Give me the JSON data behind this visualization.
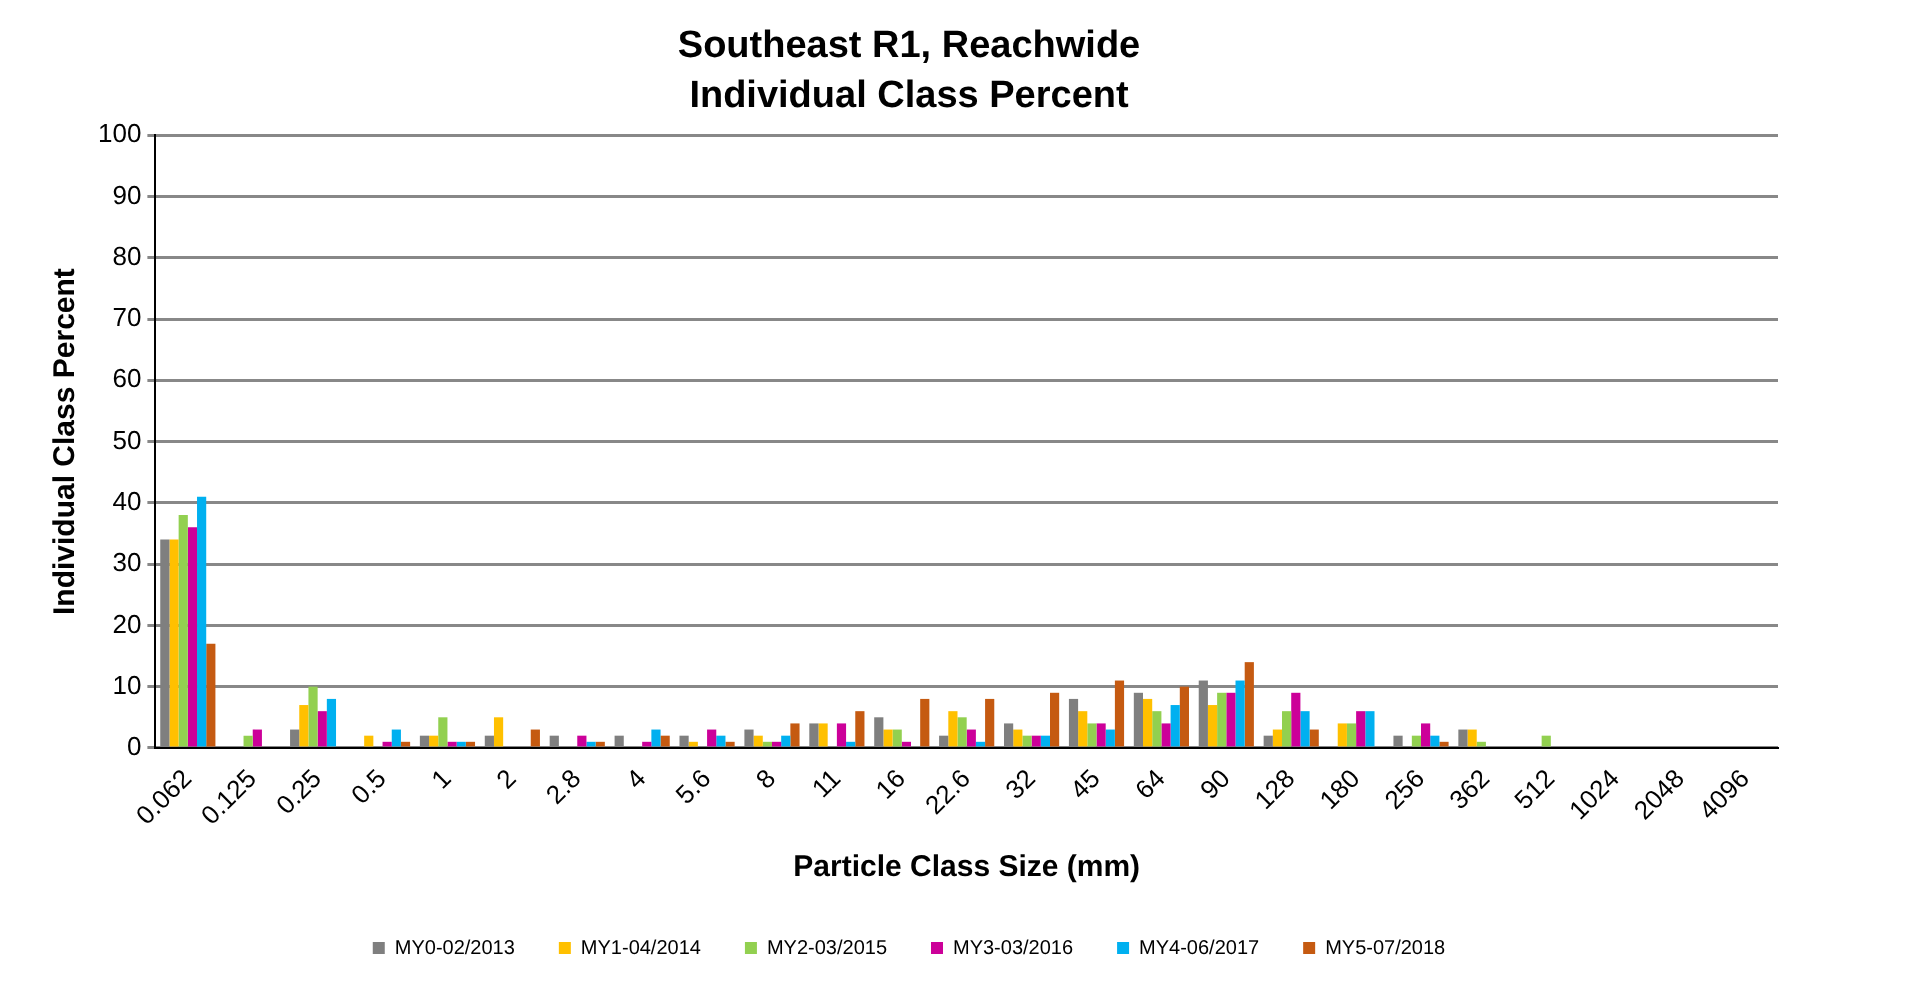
{
  "chart_data": {
    "type": "bar",
    "title": "Southeast R1, Reachwide",
    "subtitle": "Individual Class Percent",
    "xlabel": "Particle Class Size (mm)",
    "ylabel": "Individual Class Percent",
    "categories": [
      "0.062",
      "0.125",
      "0.25",
      "0.5",
      "1",
      "2",
      "2.8",
      "4",
      "5.6",
      "8",
      "11",
      "16",
      "22.6",
      "32",
      "45",
      "64",
      "90",
      "128",
      "180",
      "256",
      "362",
      "512",
      "1024",
      "2048",
      "4096"
    ],
    "series": [
      {
        "name": "MY0-02/2013",
        "color": "#7f7f7f",
        "values": [
          34,
          0,
          3,
          0,
          2,
          2,
          2,
          2,
          2,
          3,
          4,
          5,
          2,
          4,
          8,
          9,
          11,
          2,
          0,
          2,
          3,
          0,
          0,
          0,
          0
        ]
      },
      {
        "name": "MY1-04/2014",
        "color": "#ffc000",
        "values": [
          34,
          0,
          7,
          2,
          2,
          5,
          0,
          0,
          1,
          2,
          4,
          3,
          6,
          3,
          6,
          8,
          7,
          3,
          4,
          0,
          3,
          0,
          0,
          0,
          0
        ]
      },
      {
        "name": "MY2-03/2015",
        "color": "#92d050",
        "values": [
          38,
          2,
          10,
          0,
          5,
          0,
          0,
          0,
          0,
          1,
          0,
          3,
          5,
          2,
          4,
          6,
          9,
          6,
          4,
          2,
          1,
          2,
          0,
          0,
          0
        ]
      },
      {
        "name": "MY3-03/2016",
        "color": "#cc0099",
        "values": [
          36,
          3,
          6,
          1,
          1,
          0,
          2,
          1,
          3,
          1,
          4,
          1,
          3,
          2,
          4,
          4,
          9,
          9,
          6,
          4,
          0,
          0,
          0,
          0,
          0
        ]
      },
      {
        "name": "MY4-06/2017",
        "color": "#00b0f0",
        "values": [
          41,
          0,
          8,
          3,
          1,
          0,
          1,
          3,
          2,
          2,
          1,
          0,
          1,
          2,
          3,
          7,
          11,
          6,
          6,
          2,
          0,
          0,
          0,
          0,
          0
        ]
      },
      {
        "name": "MY5-07/2018",
        "color": "#c55a11",
        "values": [
          17,
          0,
          0,
          1,
          1,
          3,
          1,
          2,
          1,
          4,
          6,
          8,
          8,
          9,
          11,
          10,
          14,
          3,
          0,
          1,
          0,
          0,
          0,
          0,
          0
        ]
      }
    ],
    "ylim": [
      0,
      100
    ],
    "yticks": [
      0,
      10,
      20,
      30,
      40,
      50,
      60,
      70,
      80,
      90,
      100
    ],
    "grid": "y",
    "legend": "bottom"
  }
}
